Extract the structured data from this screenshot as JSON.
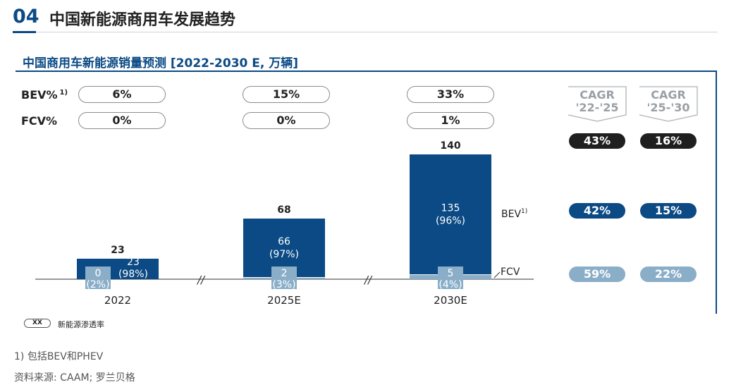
{
  "header": {
    "section_number": "04",
    "section_title": "中国新能源商用车发展趋势"
  },
  "chart_data": {
    "type": "bar",
    "title": "中国商用车新能源销量预测 [2022-2030 E, 万辆]",
    "categories": [
      "2022",
      "2025E",
      "2030E"
    ],
    "totals": [
      23,
      68,
      140
    ],
    "series": [
      {
        "name": "BEV",
        "name_note": "1)",
        "values": [
          23,
          66,
          135
        ],
        "shares": [
          "(98%)",
          "(97%)",
          "(96%)"
        ],
        "color": "#0b4a84"
      },
      {
        "name": "FCV",
        "values": [
          0,
          2,
          5
        ],
        "shares": [
          "(2%)",
          "(3%)",
          "(4%)"
        ],
        "color": "#8aaec8"
      }
    ],
    "axis_break_symbol": "//",
    "ylim": [
      0,
      140
    ],
    "penetration_rows": [
      {
        "label": "BEV%",
        "note": "1)",
        "values": [
          "6%",
          "15%",
          "33%"
        ]
      },
      {
        "label": "FCV%",
        "values": [
          "0%",
          "0%",
          "1%"
        ]
      }
    ],
    "cagr": {
      "headers": [
        {
          "line1": "CAGR",
          "line2": "'22-'25"
        },
        {
          "line1": "CAGR",
          "line2": "'25-'30"
        }
      ],
      "rows": [
        {
          "values": [
            "43%",
            "16%"
          ],
          "color": "#1f1f1f"
        },
        {
          "values": [
            "42%",
            "15%"
          ],
          "color": "#0b4a84"
        },
        {
          "values": [
            "59%",
            "22%"
          ],
          "color": "#8aaec8"
        }
      ]
    },
    "legend": {
      "chip_text": "XX",
      "description": "新能源渗透率"
    }
  },
  "footnotes": {
    "note1": "1) 包括BEV和PHEV",
    "source": "资料来源: CAAM; 罗兰贝格"
  }
}
